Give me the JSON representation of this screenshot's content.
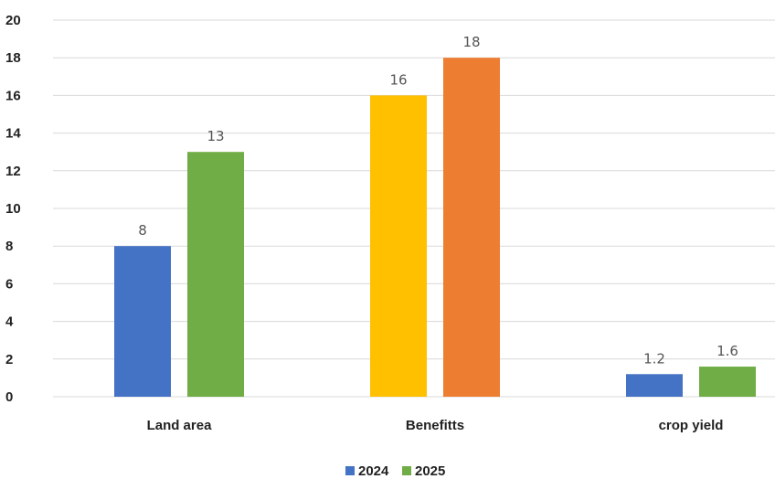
{
  "chart_data": {
    "type": "bar",
    "title": "",
    "xlabel": "",
    "ylabel": "",
    "ylim": [
      0,
      20
    ],
    "yticks": [
      "0",
      "2",
      "4",
      "6",
      "8",
      "10",
      "12",
      "14",
      "16",
      "18",
      "20"
    ],
    "grid": true,
    "legend_position": "bottom",
    "categories": [
      "Land area",
      "Benefitts",
      "crop yield"
    ],
    "series": [
      {
        "name": "2024",
        "color": "#4472c4",
        "values": [
          8,
          null,
          1.2
        ],
        "labels": [
          "8",
          null,
          "1.2"
        ]
      },
      {
        "name": "2025",
        "color": "#70ad47",
        "values": [
          13,
          null,
          1.6
        ],
        "labels": [
          "13",
          null,
          "1.6"
        ]
      }
    ],
    "extra_bars": [
      {
        "category": "Benefitts",
        "value": 16,
        "label": "16",
        "color": "#ffc000"
      },
      {
        "category": "Benefitts",
        "value": 18,
        "label": "18",
        "color": "#ed7d31"
      }
    ],
    "legend": [
      {
        "label": "2024",
        "color": "#4472c4"
      },
      {
        "label": "2025",
        "color": "#70ad47"
      }
    ]
  }
}
